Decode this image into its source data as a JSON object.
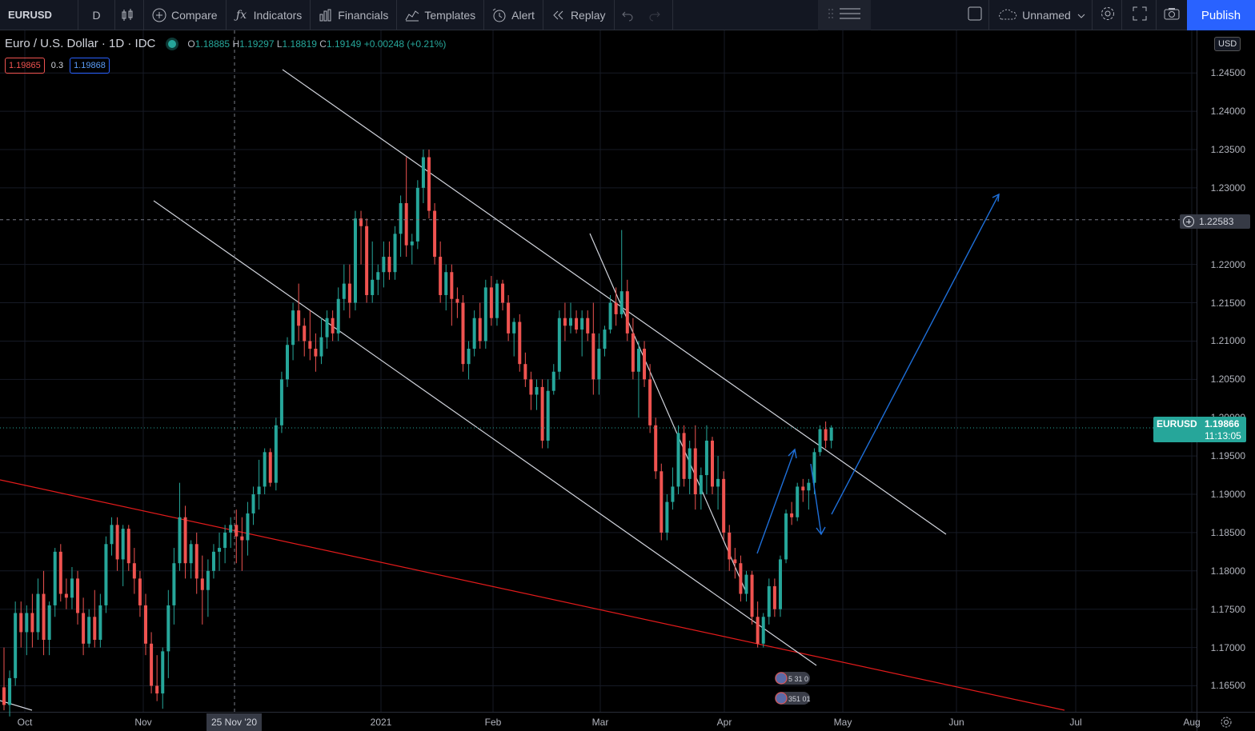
{
  "toolbar": {
    "symbol": "EURUSD",
    "interval": "D",
    "compare": "Compare",
    "indicators": "Indicators",
    "financials": "Financials",
    "templates": "Templates",
    "alert": "Alert",
    "replay": "Replay",
    "layout_name": "Unnamed",
    "publish": "Publish"
  },
  "legend": {
    "title": "Euro / U.S. Dollar · 1D · IDC",
    "open_label": "O",
    "open": "1.18885",
    "high_label": "H",
    "high": "1.19297",
    "low_label": "L",
    "low": "1.18819",
    "close_label": "C",
    "close": "1.19149",
    "change": "+0.00248 (+0.21%)",
    "bid": "1.19865",
    "spread": "0.3",
    "ask": "1.19868"
  },
  "price_axis": {
    "currency": "USD",
    "ticks": [
      "1.24500",
      "1.24000",
      "1.23500",
      "1.23000",
      "1.22000",
      "1.21500",
      "1.21000",
      "1.20500",
      "1.20000",
      "1.19500",
      "1.19000",
      "1.18500",
      "1.18000",
      "1.17500",
      "1.17000",
      "1.16500"
    ],
    "crosshair_price": "1.22583",
    "last_symbol": "EURUSD",
    "last_price": "1.19866",
    "countdown": "11:13:05"
  },
  "time_axis": {
    "ticks": [
      "Oct",
      "Nov",
      "2021",
      "Feb",
      "Mar",
      "Apr",
      "May",
      "Jun",
      "Jul",
      "Aug"
    ],
    "crosshair_date": "25 Nov '20"
  },
  "events": {
    "badge_1": "5 31 0",
    "badge_2": "351 01"
  },
  "colors": {
    "up": "#26a69a",
    "down": "#ef5350",
    "accent": "#2962ff",
    "trend_red": "#e31b1b",
    "arrow_blue": "#1e6fd9"
  },
  "chart_data": {
    "type": "candlestick",
    "ylim": [
      1.1615,
      1.2493
    ],
    "ohlc": [
      [
        1.1648,
        1.17,
        1.1618,
        1.1625
      ],
      [
        1.1625,
        1.167,
        1.161,
        1.166
      ],
      [
        1.166,
        1.176,
        1.165,
        1.1745
      ],
      [
        1.1745,
        1.176,
        1.17,
        1.172
      ],
      [
        1.172,
        1.1755,
        1.169,
        1.1745
      ],
      [
        1.1745,
        1.177,
        1.17,
        1.172
      ],
      [
        1.172,
        1.179,
        1.171,
        1.177
      ],
      [
        1.177,
        1.18,
        1.169,
        1.171
      ],
      [
        1.171,
        1.176,
        1.169,
        1.1755
      ],
      [
        1.1755,
        1.183,
        1.174,
        1.1825
      ],
      [
        1.1825,
        1.1835,
        1.176,
        1.177
      ],
      [
        1.177,
        1.179,
        1.175,
        1.1765
      ],
      [
        1.1765,
        1.1805,
        1.175,
        1.179
      ],
      [
        1.179,
        1.18,
        1.173,
        1.1745
      ],
      [
        1.1745,
        1.1765,
        1.169,
        1.1705
      ],
      [
        1.1705,
        1.175,
        1.17,
        1.174
      ],
      [
        1.174,
        1.1775,
        1.17,
        1.171
      ],
      [
        1.171,
        1.177,
        1.17,
        1.1755
      ],
      [
        1.1755,
        1.1845,
        1.1745,
        1.1835
      ],
      [
        1.1835,
        1.187,
        1.182,
        1.186
      ],
      [
        1.186,
        1.187,
        1.18,
        1.1815
      ],
      [
        1.1815,
        1.186,
        1.178,
        1.1855
      ],
      [
        1.1855,
        1.186,
        1.18,
        1.181
      ],
      [
        1.181,
        1.183,
        1.177,
        1.179
      ],
      [
        1.179,
        1.18,
        1.174,
        1.1755
      ],
      [
        1.1755,
        1.177,
        1.169,
        1.1705
      ],
      [
        1.1705,
        1.172,
        1.164,
        1.165
      ],
      [
        1.165,
        1.169,
        1.163,
        1.164
      ],
      [
        1.164,
        1.17,
        1.162,
        1.1695
      ],
      [
        1.1695,
        1.1775,
        1.166,
        1.1755
      ],
      [
        1.1755,
        1.183,
        1.173,
        1.181
      ],
      [
        1.181,
        1.1915,
        1.18,
        1.187
      ],
      [
        1.187,
        1.1885,
        1.179,
        1.181
      ],
      [
        1.181,
        1.184,
        1.179,
        1.1835
      ],
      [
        1.1835,
        1.185,
        1.177,
        1.179
      ],
      [
        1.179,
        1.182,
        1.173,
        1.1775
      ],
      [
        1.1775,
        1.1815,
        1.174,
        1.18
      ],
      [
        1.18,
        1.1835,
        1.179,
        1.1825
      ],
      [
        1.1825,
        1.185,
        1.18,
        1.183
      ],
      [
        1.183,
        1.186,
        1.181,
        1.185
      ],
      [
        1.185,
        1.187,
        1.183,
        1.186
      ],
      [
        1.186,
        1.188,
        1.181,
        1.1845
      ],
      [
        1.1845,
        1.187,
        1.18,
        1.184
      ],
      [
        1.184,
        1.189,
        1.182,
        1.1875
      ],
      [
        1.1875,
        1.191,
        1.186,
        1.19
      ],
      [
        1.19,
        1.1945,
        1.188,
        1.191
      ],
      [
        1.191,
        1.196,
        1.19,
        1.1955
      ],
      [
        1.1955,
        1.196,
        1.191,
        1.1915
      ],
      [
        1.1915,
        1.2,
        1.1905,
        1.199
      ],
      [
        1.199,
        1.206,
        1.198,
        1.205
      ],
      [
        1.205,
        1.2105,
        1.204,
        1.2095
      ],
      [
        1.2095,
        1.215,
        1.2075,
        1.214
      ],
      [
        1.214,
        1.2175,
        1.21,
        1.212
      ],
      [
        1.212,
        1.213,
        1.208,
        1.21
      ],
      [
        1.21,
        1.214,
        1.2075,
        1.209
      ],
      [
        1.209,
        1.211,
        1.206,
        1.208
      ],
      [
        1.208,
        1.213,
        1.207,
        1.2105
      ],
      [
        1.2105,
        1.214,
        1.209,
        1.213
      ],
      [
        1.213,
        1.214,
        1.21,
        1.211
      ],
      [
        1.211,
        1.217,
        1.21,
        1.2155
      ],
      [
        1.2155,
        1.22,
        1.214,
        1.2175
      ],
      [
        1.2175,
        1.22,
        1.213,
        1.215
      ],
      [
        1.215,
        1.227,
        1.214,
        1.226
      ],
      [
        1.226,
        1.227,
        1.22,
        1.225
      ],
      [
        1.225,
        1.226,
        1.215,
        1.216
      ],
      [
        1.216,
        1.223,
        1.215,
        1.218
      ],
      [
        1.218,
        1.22,
        1.216,
        1.219
      ],
      [
        1.219,
        1.223,
        1.217,
        1.221
      ],
      [
        1.221,
        1.223,
        1.218,
        1.219
      ],
      [
        1.219,
        1.225,
        1.218,
        1.224
      ],
      [
        1.224,
        1.229,
        1.221,
        1.228
      ],
      [
        1.228,
        1.234,
        1.221,
        1.2225
      ],
      [
        1.2225,
        1.224,
        1.22,
        1.223
      ],
      [
        1.223,
        1.231,
        1.222,
        1.23
      ],
      [
        1.23,
        1.235,
        1.228,
        1.234
      ],
      [
        1.234,
        1.235,
        1.226,
        1.227
      ],
      [
        1.227,
        1.228,
        1.22,
        1.221
      ],
      [
        1.221,
        1.223,
        1.215,
        1.216
      ],
      [
        1.216,
        1.22,
        1.214,
        1.219
      ],
      [
        1.219,
        1.22,
        1.212,
        1.2155
      ],
      [
        1.2155,
        1.217,
        1.213,
        1.215
      ],
      [
        1.215,
        1.216,
        1.206,
        1.207
      ],
      [
        1.207,
        1.21,
        1.205,
        1.209
      ],
      [
        1.209,
        1.214,
        1.208,
        1.213
      ],
      [
        1.213,
        1.215,
        1.209,
        1.21
      ],
      [
        1.21,
        1.218,
        1.209,
        1.217
      ],
      [
        1.217,
        1.2185,
        1.212,
        1.213
      ],
      [
        1.213,
        1.218,
        1.212,
        1.2175
      ],
      [
        1.2175,
        1.218,
        1.214,
        1.215
      ],
      [
        1.215,
        1.216,
        1.21,
        1.211
      ],
      [
        1.211,
        1.213,
        1.208,
        1.2125
      ],
      [
        1.2125,
        1.2135,
        1.206,
        1.207
      ],
      [
        1.207,
        1.2085,
        1.204,
        1.205
      ],
      [
        1.205,
        1.206,
        1.201,
        1.203
      ],
      [
        1.203,
        1.205,
        1.201,
        1.204
      ],
      [
        1.204,
        1.205,
        1.196,
        1.197
      ],
      [
        1.197,
        1.205,
        1.196,
        1.2035
      ],
      [
        1.2035,
        1.207,
        1.203,
        1.206
      ],
      [
        1.206,
        1.214,
        1.205,
        1.213
      ],
      [
        1.213,
        1.215,
        1.21,
        1.212
      ],
      [
        1.212,
        1.215,
        1.211,
        1.213
      ],
      [
        1.213,
        1.214,
        1.211,
        1.2115
      ],
      [
        1.2115,
        1.214,
        1.208,
        1.213
      ],
      [
        1.213,
        1.214,
        1.21,
        1.211
      ],
      [
        1.211,
        1.215,
        1.203,
        1.205
      ],
      [
        1.205,
        1.211,
        1.203,
        1.209
      ],
      [
        1.209,
        1.212,
        1.208,
        1.2115
      ],
      [
        1.2115,
        1.216,
        1.211,
        1.215
      ],
      [
        1.215,
        1.217,
        1.212,
        1.2135
      ],
      [
        1.2135,
        1.2245,
        1.213,
        1.2165
      ],
      [
        1.2165,
        1.218,
        1.21,
        1.211
      ],
      [
        1.211,
        1.213,
        1.205,
        1.206
      ],
      [
        1.206,
        1.21,
        1.2,
        1.209
      ],
      [
        1.209,
        1.21,
        1.204,
        1.205
      ],
      [
        1.205,
        1.207,
        1.198,
        1.199
      ],
      [
        1.199,
        1.2,
        1.192,
        1.193
      ],
      [
        1.193,
        1.194,
        1.184,
        1.185
      ],
      [
        1.185,
        1.19,
        1.184,
        1.189
      ],
      [
        1.189,
        1.1935,
        1.188,
        1.191
      ],
      [
        1.191,
        1.199,
        1.19,
        1.198
      ],
      [
        1.198,
        1.199,
        1.191,
        1.192
      ],
      [
        1.192,
        1.197,
        1.19,
        1.196
      ],
      [
        1.196,
        1.199,
        1.188,
        1.19
      ],
      [
        1.19,
        1.1935,
        1.188,
        1.1925
      ],
      [
        1.1925,
        1.199,
        1.19,
        1.197
      ],
      [
        1.197,
        1.1975,
        1.19,
        1.191
      ],
      [
        1.191,
        1.195,
        1.188,
        1.192
      ],
      [
        1.192,
        1.193,
        1.184,
        1.185
      ],
      [
        1.185,
        1.186,
        1.18,
        1.1815
      ],
      [
        1.1815,
        1.183,
        1.179,
        1.181
      ],
      [
        1.181,
        1.182,
        1.176,
        1.177
      ],
      [
        1.177,
        1.18,
        1.176,
        1.1795
      ],
      [
        1.1795,
        1.18,
        1.173,
        1.174
      ],
      [
        1.174,
        1.176,
        1.17,
        1.1705
      ],
      [
        1.1705,
        1.1745,
        1.17,
        1.174
      ],
      [
        1.174,
        1.179,
        1.173,
        1.178
      ],
      [
        1.178,
        1.179,
        1.174,
        1.175
      ],
      [
        1.175,
        1.182,
        1.174,
        1.1815
      ],
      [
        1.1815,
        1.188,
        1.181,
        1.1875
      ],
      [
        1.1875,
        1.189,
        1.186,
        1.187
      ],
      [
        1.187,
        1.1915,
        1.1865,
        1.191
      ],
      [
        1.191,
        1.192,
        1.189,
        1.1905
      ],
      [
        1.1905,
        1.192,
        1.188,
        1.1915
      ],
      [
        1.1915,
        1.196,
        1.19,
        1.1955
      ],
      [
        1.1955,
        1.199,
        1.195,
        1.1985
      ],
      [
        1.1985,
        1.1995,
        1.196,
        1.197
      ],
      [
        1.197,
        1.199,
        1.196,
        1.1987
      ]
    ]
  }
}
